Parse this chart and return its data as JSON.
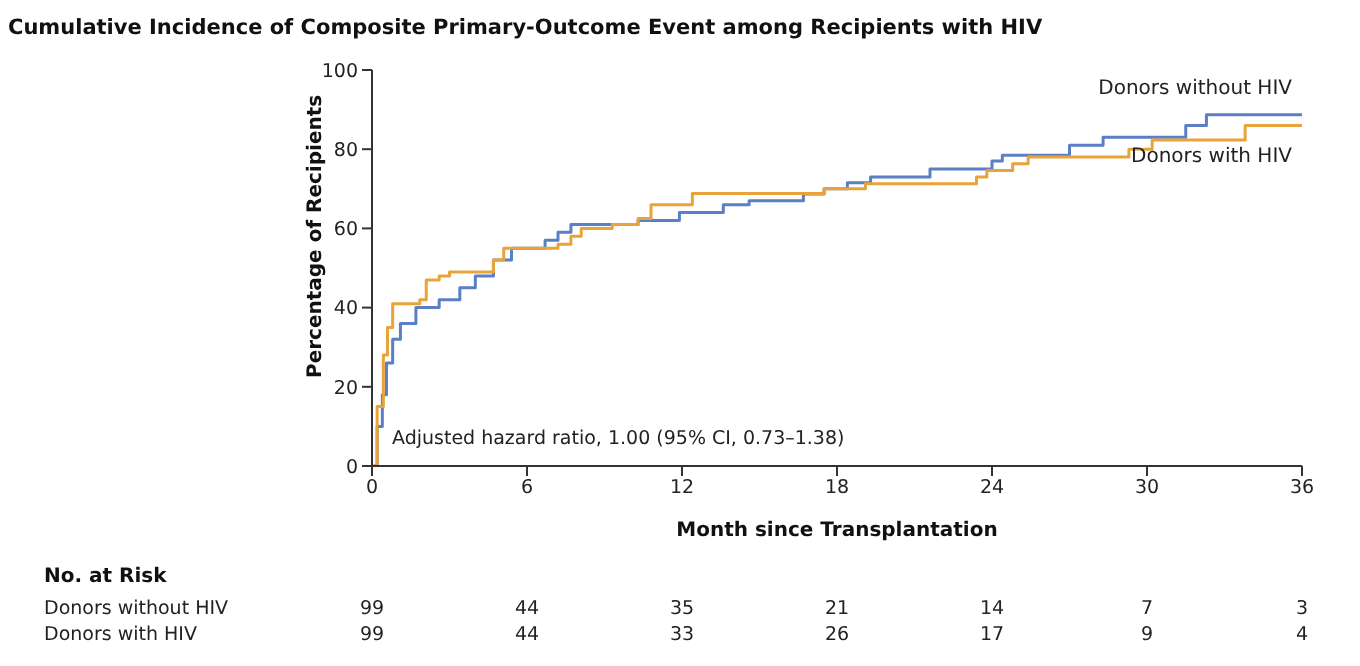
{
  "chart_data": {
    "type": "step",
    "title": "Cumulative Incidence of Composite Primary-Outcome Event among Recipients with HIV",
    "xlabel": "Month since Transplantation",
    "ylabel": "Percentage of Recipients",
    "xlim": [
      0,
      36
    ],
    "xticks": [
      0,
      6,
      12,
      18,
      24,
      30,
      36
    ],
    "ylim": [
      0,
      100
    ],
    "yticks": [
      0,
      20,
      40,
      60,
      80,
      100
    ],
    "grid": false,
    "legend": false,
    "marker": "none",
    "line_style": "solid",
    "series": [
      {
        "name": "Donors without HIV",
        "color": "#5b7fc4",
        "x": [
          0,
          0.2,
          0.4,
          0.56,
          0.8,
          1.1,
          1.7,
          2.6,
          3.4,
          4,
          4.7,
          5.4,
          6.7,
          7.2,
          7.7,
          9.3,
          10.3,
          11.9,
          13.6,
          14.6,
          16.7,
          17.5,
          18.4,
          19.3,
          21.6,
          24,
          24.4,
          27,
          28.3,
          31.5,
          32.3,
          36
        ],
        "values": [
          0,
          10,
          18,
          26,
          32,
          36,
          40,
          42,
          45,
          48,
          52,
          55,
          57,
          59,
          61,
          61,
          62,
          64,
          66,
          67,
          68.7,
          70,
          71.5,
          73,
          75,
          77,
          78.5,
          81,
          83,
          86,
          88.7,
          88.7
        ]
      },
      {
        "name": "Donors with HIV",
        "color": "#e8a33a",
        "x": [
          0,
          0.2,
          0.44,
          0.6,
          0.8,
          1.85,
          2.1,
          2.6,
          3,
          4.7,
          5.1,
          7.2,
          7.7,
          8.1,
          9.3,
          10.3,
          10.8,
          12.4,
          17.5,
          19.1,
          23.4,
          23.8,
          24.8,
          25.4,
          29.3,
          30.2,
          33.8,
          36
        ],
        "values": [
          0,
          15,
          28,
          35,
          41,
          42,
          47,
          48,
          49,
          52,
          55,
          56,
          58,
          60,
          61,
          62.5,
          66,
          68.8,
          70,
          71.3,
          73,
          74.6,
          76.3,
          78,
          80,
          82.3,
          86,
          86
        ]
      }
    ],
    "annotations": [
      "Adjusted hazard ratio, 1.00 (95% CI, 0.73–1.38)",
      "No. at Risk",
      "99",
      "44",
      "35",
      "21",
      "14",
      "7",
      "3",
      "99",
      "44",
      "33",
      "26",
      "17",
      "9",
      "4"
    ]
  }
}
